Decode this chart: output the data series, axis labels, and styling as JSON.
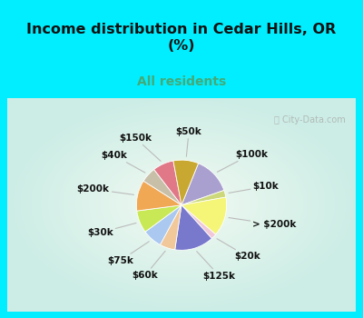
{
  "title": "Income distribution in Cedar Hills, OR\n(%)",
  "subtitle": "All residents",
  "title_color": "#111111",
  "subtitle_color": "#44aa77",
  "bg_cyan": "#00eeff",
  "watermark": "ⓘ City-Data.com",
  "slices": [
    {
      "label": "$100k",
      "value": 13.5,
      "color": "#aaa0d0"
    },
    {
      "label": "$10k",
      "value": 2.5,
      "color": "#ccd87a"
    },
    {
      "label": "> $200k",
      "value": 14.0,
      "color": "#f5f577"
    },
    {
      "label": "$20k",
      "value": 2.0,
      "color": "#f0c8d8"
    },
    {
      "label": "$125k",
      "value": 14.0,
      "color": "#7878cc"
    },
    {
      "label": "$60k",
      "value": 5.5,
      "color": "#f0c89a"
    },
    {
      "label": "$75k",
      "value": 7.0,
      "color": "#aac8f0"
    },
    {
      "label": "$30k",
      "value": 8.0,
      "color": "#c8e855"
    },
    {
      "label": "$200k",
      "value": 11.0,
      "color": "#f0a855"
    },
    {
      "label": "$40k",
      "value": 5.5,
      "color": "#c8bfa8"
    },
    {
      "label": "$150k",
      "value": 7.5,
      "color": "#e07888"
    },
    {
      "label": "$50k",
      "value": 9.0,
      "color": "#c8a830"
    }
  ],
  "startangle": 68,
  "label_fontsize": 7.5,
  "label_color": "#111111",
  "title_fontsize": 11.5,
  "subtitle_fontsize": 10
}
